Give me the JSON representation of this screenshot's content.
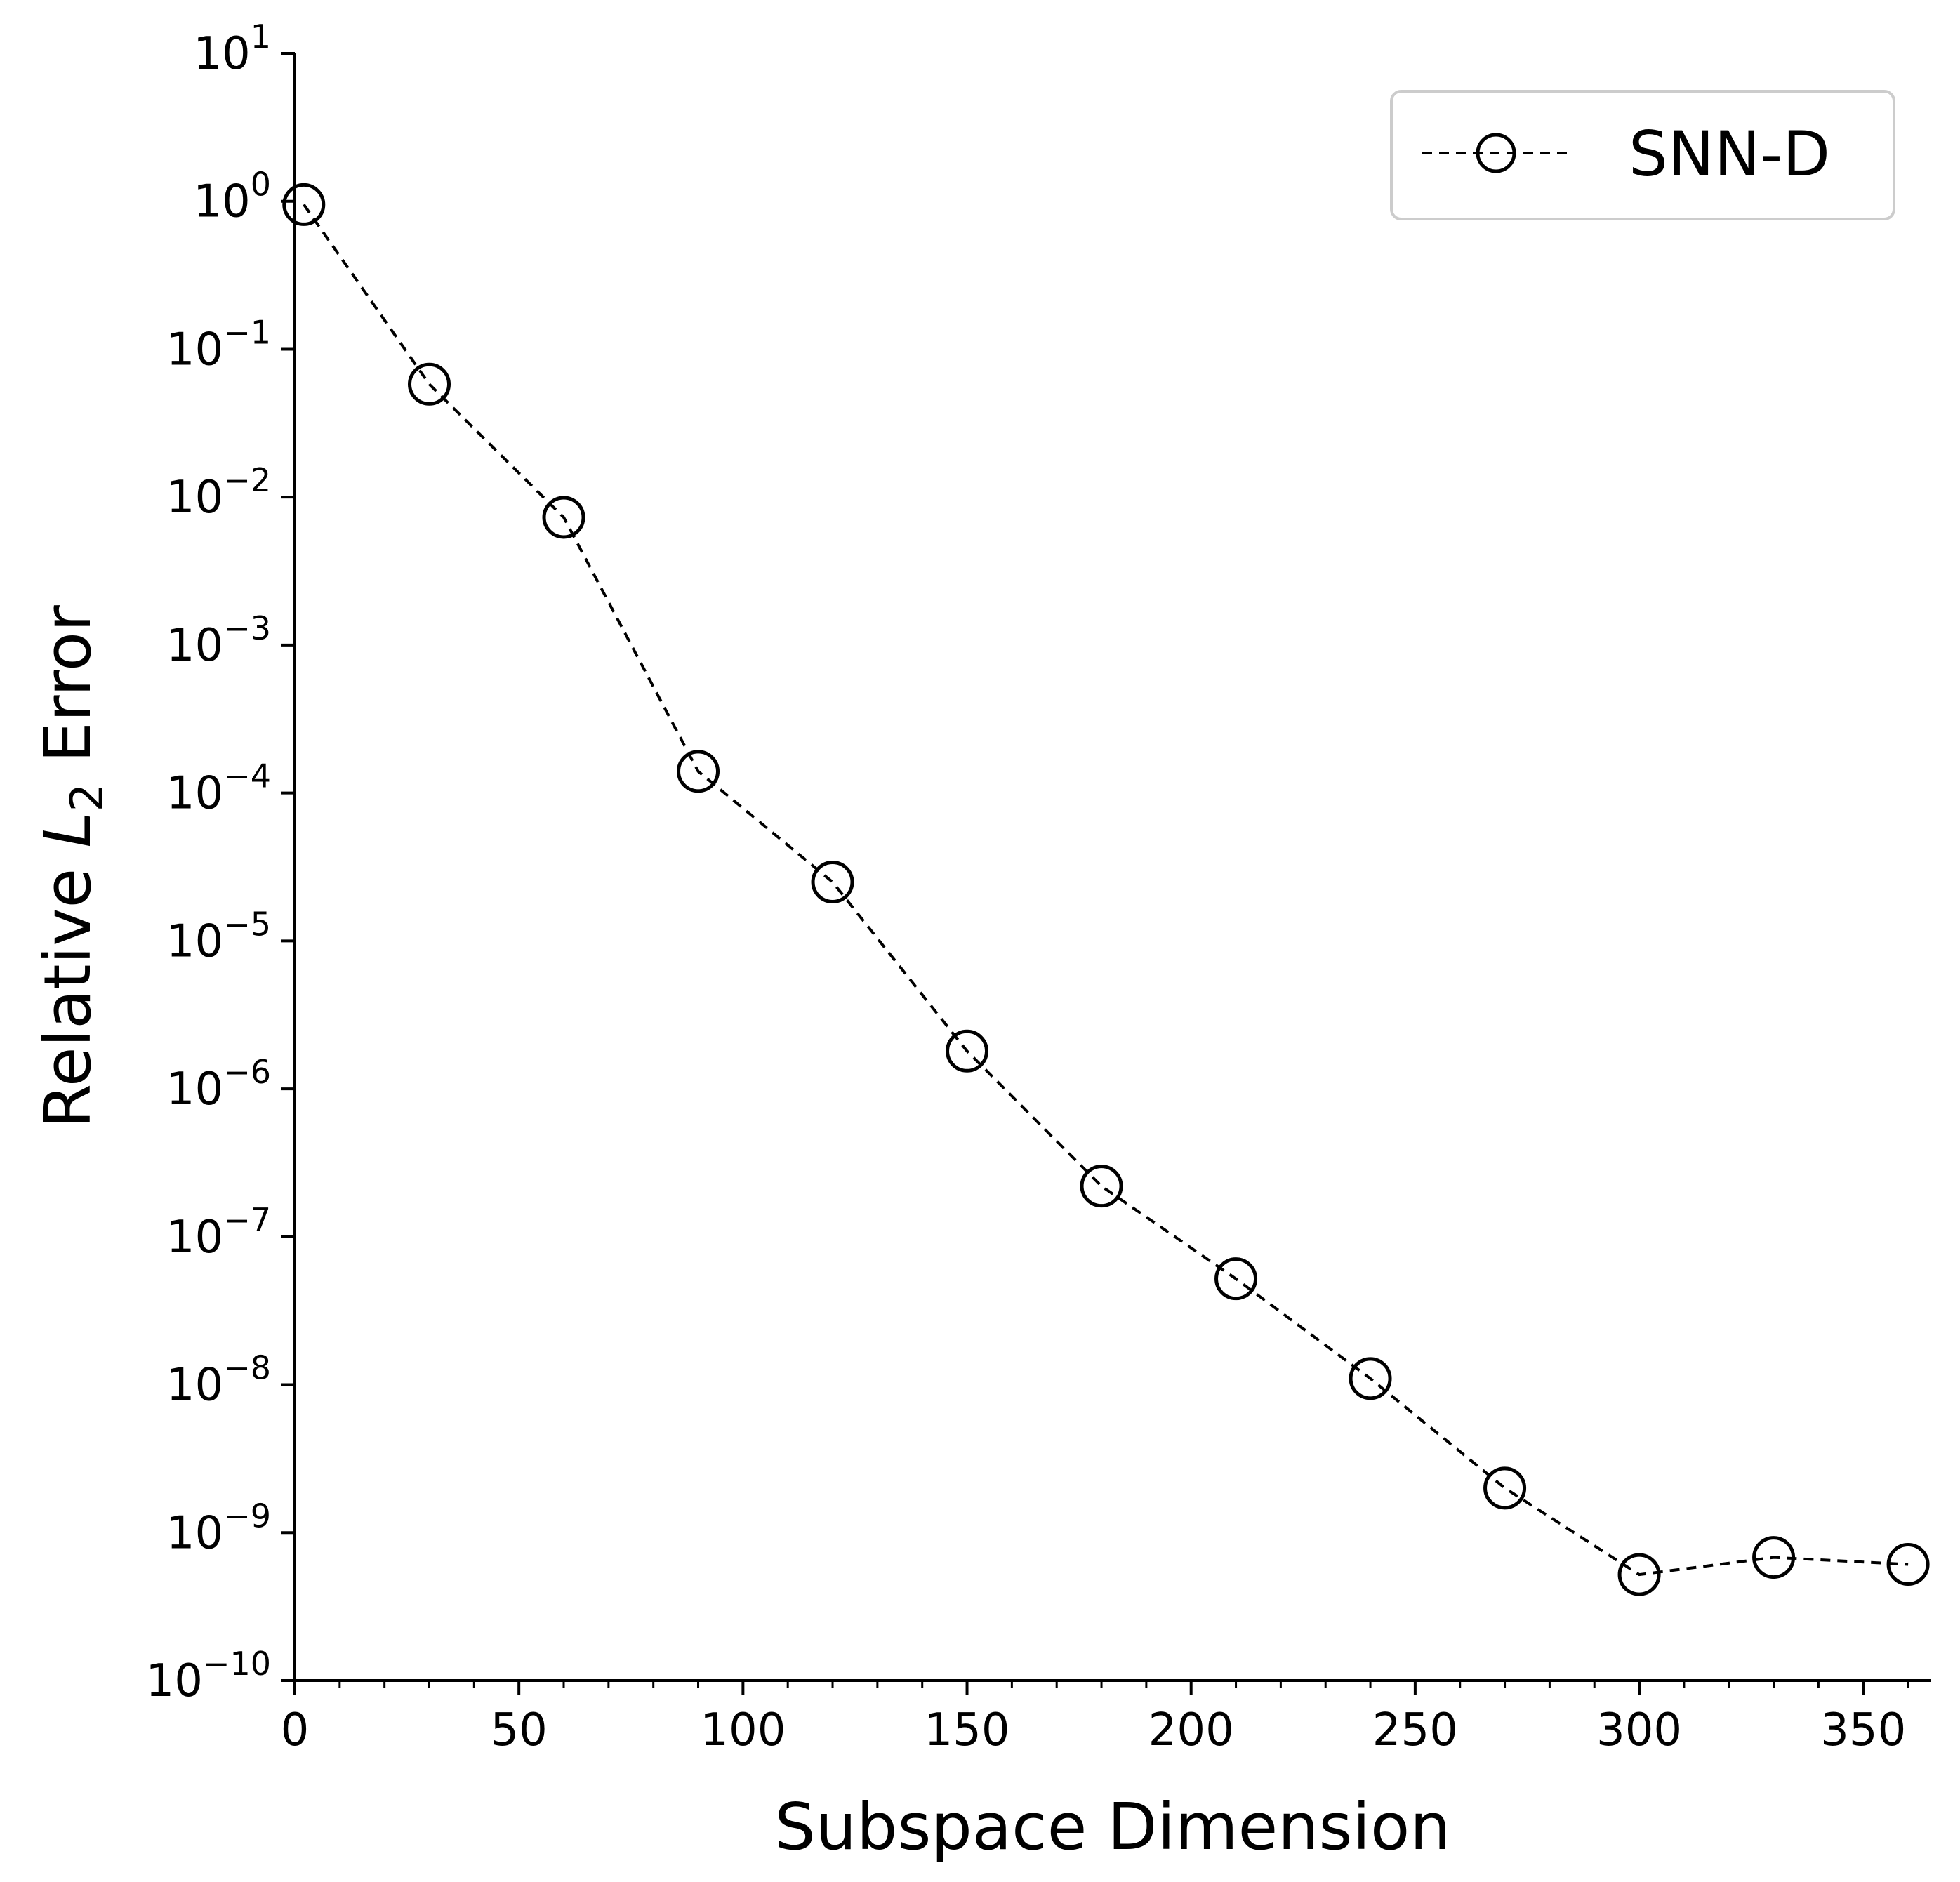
{
  "chart_data": {
    "type": "line",
    "xlabel": "Subspace Dimension",
    "ylabel": {
      "prefix": "Relative ",
      "symbol": "L",
      "subscript": "2",
      "suffix": " Error"
    },
    "yscale": "log",
    "xlim": [
      0,
      365
    ],
    "ylim": [
      1e-10,
      10
    ],
    "grid": false,
    "legend_position": "top-right",
    "x_ticks": [
      0,
      50,
      100,
      150,
      200,
      250,
      300,
      350
    ],
    "x_tick_labels": [
      "0",
      "50",
      "100",
      "150",
      "200",
      "250",
      "300",
      "350"
    ],
    "x_minor_ticks": [
      10,
      20,
      30,
      40,
      60,
      70,
      80,
      90,
      110,
      120,
      130,
      140,
      160,
      170,
      180,
      190,
      210,
      220,
      230,
      240,
      260,
      270,
      280,
      290,
      310,
      320,
      330,
      340,
      360
    ],
    "y_ticks": [
      10,
      1,
      0.1,
      0.01,
      0.001,
      0.0001,
      1e-05,
      1e-06,
      1e-07,
      1e-08,
      1e-09,
      1e-10
    ],
    "y_tick_labels": [
      {
        "base": "10",
        "exp": "1"
      },
      {
        "base": "10",
        "exp": "0"
      },
      {
        "base": "10",
        "exp": "−1"
      },
      {
        "base": "10",
        "exp": "−2"
      },
      {
        "base": "10",
        "exp": "−3"
      },
      {
        "base": "10",
        "exp": "−4"
      },
      {
        "base": "10",
        "exp": "−5"
      },
      {
        "base": "10",
        "exp": "−6"
      },
      {
        "base": "10",
        "exp": "−7"
      },
      {
        "base": "10",
        "exp": "−8"
      },
      {
        "base": "10",
        "exp": "−9"
      },
      {
        "base": "10",
        "exp": "−10"
      }
    ],
    "series": [
      {
        "name": "SNN-D",
        "color": "#000000",
        "line_style": "dashed",
        "marker": "open-circle",
        "x": [
          2,
          30,
          60,
          90,
          120,
          150,
          180,
          210,
          240,
          270,
          300,
          330,
          360
        ],
        "y": [
          0.95,
          0.058,
          0.0073,
          0.00014,
          2.5e-05,
          1.8e-06,
          2.2e-07,
          5.2e-08,
          1.1e-08,
          2e-09,
          5.2e-10,
          6.8e-10,
          6.1e-10
        ]
      }
    ]
  }
}
